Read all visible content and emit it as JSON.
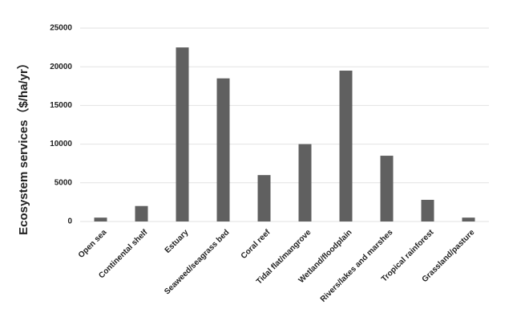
{
  "chart_data": {
    "type": "bar",
    "y_label": "Ecosystem services（$/ha/yr）",
    "categories": [
      "Open sea",
      "Continental shelf",
      "Estuary",
      "Seaweed/seagrass bed",
      "Coral reef",
      "Tidal flat/mangrove",
      "Wetland/floodplain",
      "Rivers/lakes and marshes",
      "Tropical rainforest",
      "Grassland/pasture"
    ],
    "values": [
      500,
      2000,
      22500,
      18500,
      6000,
      10000,
      19500,
      8500,
      2800,
      500
    ],
    "color": "#606060",
    "ylim": [
      0,
      25000
    ],
    "yticks": [
      0,
      5000,
      10000,
      15000,
      20000,
      25000
    ],
    "grid": true
  }
}
